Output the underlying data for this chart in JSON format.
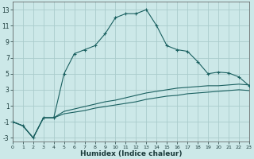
{
  "xlabel": "Humidex (Indice chaleur)",
  "background_color": "#cce8e8",
  "grid_color": "#aacccc",
  "line_color": "#1a6060",
  "xlim": [
    0,
    23
  ],
  "ylim": [
    -3.5,
    14
  ],
  "xticks": [
    0,
    1,
    2,
    3,
    4,
    5,
    6,
    7,
    8,
    9,
    10,
    11,
    12,
    13,
    14,
    15,
    16,
    17,
    18,
    19,
    20,
    21,
    22,
    23
  ],
  "yticks": [
    -3,
    -1,
    1,
    3,
    5,
    7,
    9,
    11,
    13
  ],
  "line1_x": [
    0,
    1,
    2,
    3,
    4,
    5,
    6,
    7,
    8,
    9,
    10,
    11,
    12,
    13,
    14,
    15,
    16,
    17,
    18,
    19,
    20,
    21,
    22,
    23
  ],
  "line1_y": [
    -1.0,
    -1.5,
    -3.0,
    -0.5,
    -0.5,
    5.0,
    7.5,
    8.0,
    8.5,
    10.0,
    12.0,
    12.5,
    12.5,
    13.0,
    11.0,
    8.5,
    8.0,
    7.8,
    6.5,
    5.0,
    5.2,
    5.1,
    4.6,
    3.5
  ],
  "line2_x": [
    0,
    1,
    2,
    3,
    4,
    5,
    6,
    7,
    8,
    9,
    10,
    11,
    12,
    13,
    14,
    15,
    16,
    17,
    18,
    19,
    20,
    21,
    22,
    23
  ],
  "line2_y": [
    -1.0,
    -1.5,
    -3.0,
    -0.5,
    -0.5,
    0.3,
    0.6,
    0.9,
    1.2,
    1.5,
    1.7,
    2.0,
    2.3,
    2.6,
    2.8,
    3.0,
    3.2,
    3.3,
    3.4,
    3.5,
    3.5,
    3.6,
    3.7,
    3.6
  ],
  "line3_x": [
    0,
    1,
    2,
    3,
    4,
    5,
    6,
    7,
    8,
    9,
    10,
    11,
    12,
    13,
    14,
    15,
    16,
    17,
    18,
    19,
    20,
    21,
    22,
    23
  ],
  "line3_y": [
    -1.0,
    -1.5,
    -3.0,
    -0.5,
    -0.5,
    0.0,
    0.2,
    0.4,
    0.7,
    0.9,
    1.1,
    1.3,
    1.5,
    1.8,
    2.0,
    2.2,
    2.3,
    2.5,
    2.6,
    2.7,
    2.8,
    2.9,
    3.0,
    2.9
  ]
}
